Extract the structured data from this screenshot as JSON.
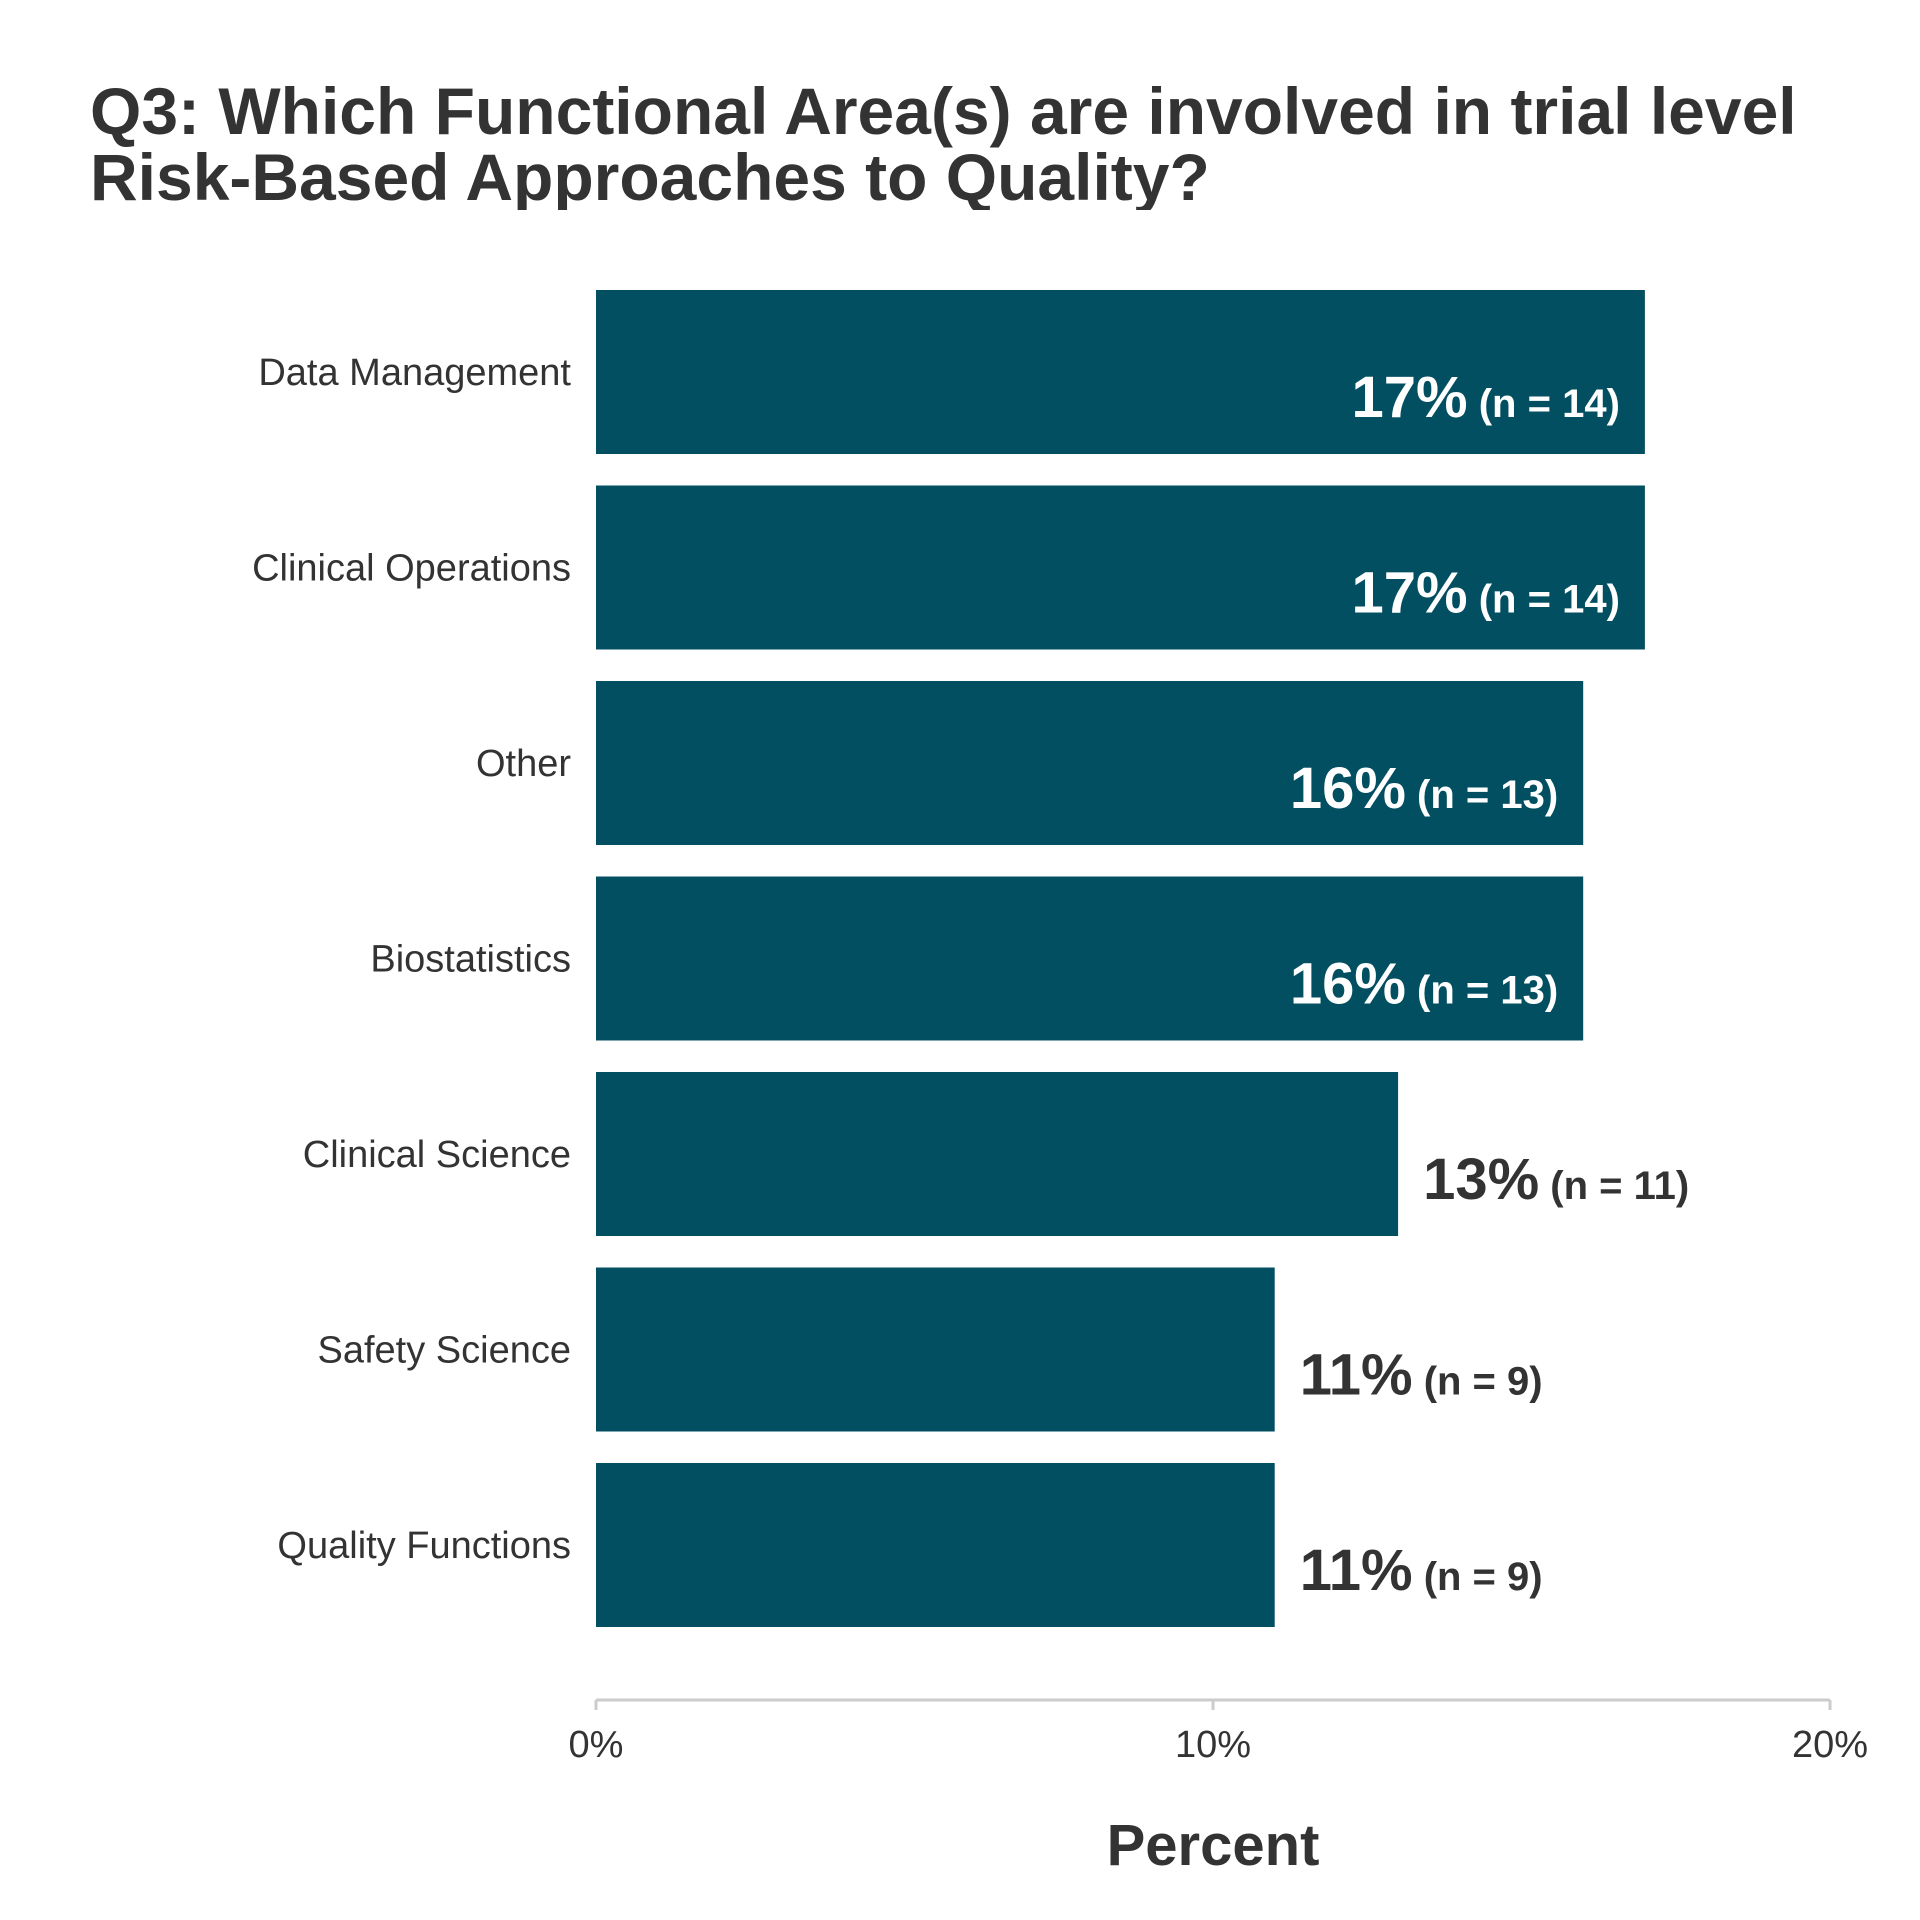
{
  "chart_data": {
    "type": "bar",
    "orientation": "horizontal",
    "title_lines": [
      "Q3: Which Functional Area(s) are involved in trial level",
      "Risk-Based Approaches to Quality?"
    ],
    "xlabel": "Percent",
    "ylabel": "",
    "xlim": [
      0,
      20
    ],
    "xticks": [
      0,
      10,
      20
    ],
    "xtick_labels": [
      "0%",
      "10%",
      "20%"
    ],
    "grid": false,
    "legend": "none",
    "bar_color": "#034f62",
    "categories": [
      "Data Management",
      "Clinical Operations",
      "Other",
      "Biostatistics",
      "Clinical Science",
      "Safety Science",
      "Quality Functions"
    ],
    "values": [
      17,
      17,
      16,
      16,
      13,
      11,
      11
    ],
    "percent_labels": [
      "17%",
      "17%",
      "16%",
      "16%",
      "13%",
      "11%",
      "11%"
    ],
    "n_labels": [
      "(n = 14)",
      "(n = 14)",
      "(n = 13)",
      "(n = 13)",
      "(n = 11)",
      "(n = 9)",
      "(n = 9)"
    ],
    "label_inside": [
      true,
      true,
      true,
      true,
      false,
      false,
      false
    ],
    "label_inside_color": "#ffffff",
    "label_outside_color": "#333333"
  }
}
